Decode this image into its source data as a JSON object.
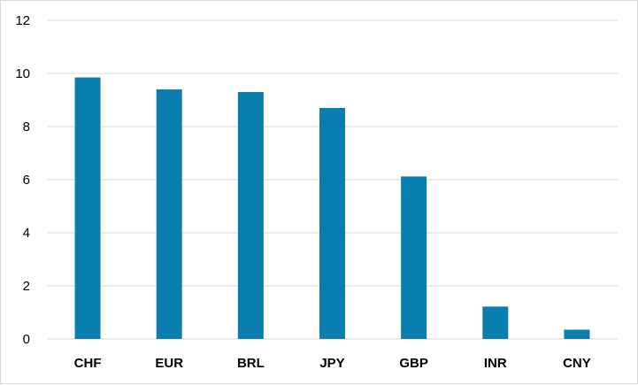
{
  "chart_data": {
    "type": "bar",
    "categories": [
      "CHF",
      "EUR",
      "BRL",
      "JPY",
      "GBP",
      "INR",
      "CNY"
    ],
    "values": [
      9.85,
      9.4,
      9.3,
      8.7,
      6.12,
      1.22,
      0.35
    ],
    "yticks": [
      "0",
      "2",
      "4",
      "6",
      "8",
      "10",
      "12"
    ],
    "ylim": [
      0,
      12
    ],
    "grid": true,
    "legend": "none",
    "bar_color": "#0A7FAF",
    "title": "",
    "xlabel": "",
    "ylabel": ""
  }
}
